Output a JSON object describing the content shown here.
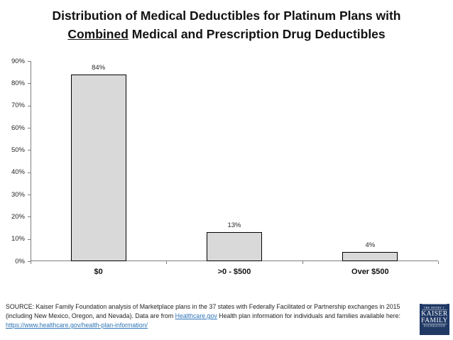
{
  "title": {
    "line1": "Distribution of Medical Deductibles for Platinum Plans with",
    "line2_underlined": "Combined",
    "line2_rest": " Medical and Prescription Drug Deductibles"
  },
  "chart_data": {
    "type": "bar",
    "title": "Distribution of Medical Deductibles for Platinum Plans with Combined Medical and Prescription Drug Deductibles",
    "categories": [
      "$0",
      ">0 - $500",
      "Over $500"
    ],
    "values": [
      84,
      13,
      4
    ],
    "value_labels": [
      "84%",
      "13%",
      "4%"
    ],
    "xlabel": "",
    "ylabel": "",
    "ylim": [
      0,
      90
    ],
    "ytick_labels": [
      "0%",
      "10%",
      "20%",
      "30%",
      "40%",
      "50%",
      "60%",
      "70%",
      "80%",
      "90%"
    ],
    "grid": false,
    "legend": false,
    "bar_fill": "#D9D9D9",
    "bar_border": "#000000"
  },
  "source": {
    "line1": "SOURCE: Kaiser Family Foundation analysis of Marketplace plans in the 37 states with Federally Facilitated or Partnership exchanges in 2015",
    "line2_pre": "(including New Mexico, Oregon, and Nevada). Data are from ",
    "line2_link": "Healthcare.gov",
    "line2_post": " Health plan information for individuals and families available here:",
    "line3_link": "https://www.healthcare.gov/health-plan-information/"
  },
  "logo": {
    "line1": "THE HENRY J.",
    "line2": "KAISER",
    "line3": "FAMILY",
    "line4": "FOUNDATION"
  },
  "colors": {
    "axis": "#7F7F7F",
    "tick_text": "#262626",
    "title_text": "#121212",
    "link": "#2E75B6",
    "logo_bg": "#1F3864",
    "bar_fill": "#D9D9D9",
    "bar_border": "#000000"
  }
}
